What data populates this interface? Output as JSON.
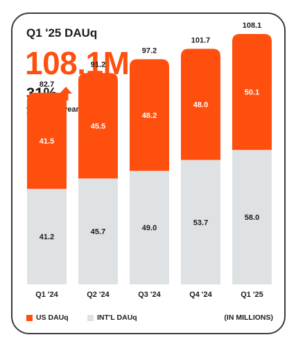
{
  "header": {
    "title": "Q1 '25 DAUq",
    "value": "108.1M",
    "yoy": "31%",
    "yoy_label": "year-over-year"
  },
  "legend": {
    "us": "US DAUq",
    "intl": "INT'L DAUq",
    "unit": "(IN MILLIONS)"
  },
  "colors": {
    "accent": "#ff4f0f",
    "us": "#ff4f0f",
    "intl": "#dfe2e4",
    "text": "#1a1a1a"
  },
  "chart_data": {
    "type": "bar",
    "stacked": true,
    "categories": [
      "Q1 '24",
      "Q2 '24",
      "Q3 '24",
      "Q4 '24",
      "Q1 '25"
    ],
    "series": [
      {
        "name": "INT'L DAUq",
        "values": [
          41.2,
          45.7,
          49.0,
          53.7,
          58.0
        ]
      },
      {
        "name": "US DAUq",
        "values": [
          41.5,
          45.5,
          48.2,
          48.0,
          50.1
        ]
      }
    ],
    "totals": [
      82.7,
      91.2,
      97.2,
      101.7,
      108.1
    ],
    "ylim": [
      0,
      110
    ],
    "legend_position": "bottom",
    "grid": false,
    "unit": "(IN MILLIONS)"
  }
}
